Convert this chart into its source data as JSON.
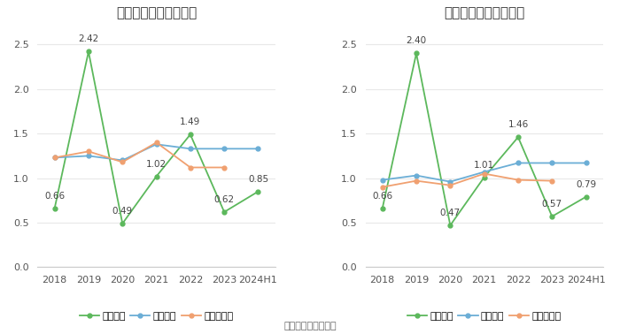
{
  "categories": [
    "2018",
    "2019",
    "2020",
    "2021",
    "2022",
    "2023",
    "2024H1"
  ],
  "left": {
    "title": "历年流动比率变化情况",
    "green_label": "流动比率",
    "blue_label": "行业均值",
    "orange_label": "行业中位数",
    "green_values": [
      0.66,
      2.42,
      0.49,
      1.02,
      1.49,
      0.62,
      0.85
    ],
    "blue_values": [
      1.23,
      1.25,
      1.2,
      1.38,
      1.33,
      1.33,
      1.33
    ],
    "orange_values": [
      1.23,
      1.3,
      1.18,
      1.4,
      1.12,
      1.12,
      null
    ],
    "green_labels": [
      "0.66",
      "2.42",
      "0.49",
      "1.02",
      "1.49",
      "0.62",
      "0.85"
    ],
    "ylim": [
      0,
      2.7
    ],
    "yticks": [
      0,
      0.5,
      1,
      1.5,
      2,
      2.5
    ]
  },
  "right": {
    "title": "历年速动比率变化情况",
    "green_label": "速动比率",
    "blue_label": "行业均值",
    "orange_label": "行业中位数",
    "green_values": [
      0.66,
      2.4,
      0.47,
      1.01,
      1.46,
      0.57,
      0.79
    ],
    "blue_values": [
      0.98,
      1.03,
      0.96,
      1.07,
      1.17,
      1.17,
      1.17
    ],
    "orange_values": [
      0.9,
      0.97,
      0.92,
      1.05,
      0.98,
      0.97,
      null
    ],
    "green_labels": [
      "0.66",
      "2.40",
      "0.47",
      "1.01",
      "1.46",
      "0.57",
      "0.79"
    ],
    "ylim": [
      0,
      2.7
    ],
    "yticks": [
      0,
      0.5,
      1,
      1.5,
      2,
      2.5
    ]
  },
  "footer": "数据来源：恒生聚源",
  "green_color": "#5cb85c",
  "blue_color": "#6baed6",
  "orange_color": "#f0a070",
  "background_color": "#ffffff",
  "grid_color": "#e8e8e8",
  "label_fontsize": 7.5,
  "title_fontsize": 11,
  "tick_fontsize": 8,
  "legend_fontsize": 8
}
